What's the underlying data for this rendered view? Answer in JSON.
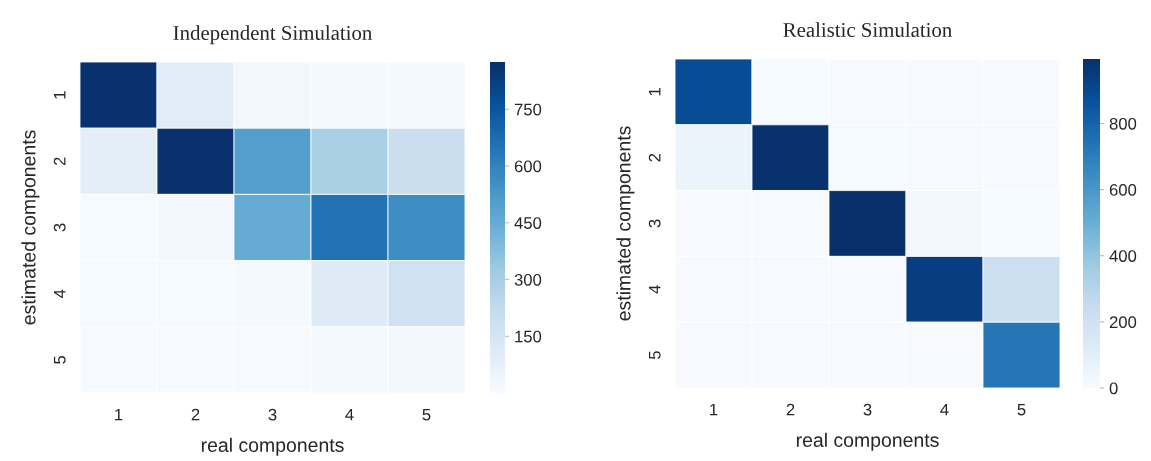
{
  "chart_data": [
    {
      "type": "heatmap",
      "title": "Independent Simulation",
      "xlabel": "real components",
      "ylabel": "estimated components",
      "categories": [
        "1",
        "2",
        "3",
        "4",
        "5"
      ],
      "y_categories": [
        "1",
        "2",
        "3",
        "4",
        "5"
      ],
      "cells": [
        [
          870,
          100,
          30,
          15,
          15
        ],
        [
          90,
          870,
          500,
          300,
          200
        ],
        [
          10,
          20,
          450,
          650,
          560
        ],
        [
          10,
          10,
          15,
          110,
          180
        ],
        [
          5,
          5,
          5,
          15,
          30
        ]
      ],
      "clim": [
        0,
        875
      ],
      "cticks": [
        150,
        300,
        450,
        600,
        750
      ]
    },
    {
      "type": "heatmap",
      "title": "Realistic Simulation",
      "xlabel": "real components",
      "ylabel": "estimated components",
      "categories": [
        "1",
        "2",
        "3",
        "4",
        "5"
      ],
      "y_categories": [
        "1",
        "2",
        "3",
        "4",
        "5"
      ],
      "cells": [
        [
          890,
          10,
          5,
          5,
          5
        ],
        [
          60,
          990,
          10,
          5,
          5
        ],
        [
          5,
          5,
          995,
          30,
          10
        ],
        [
          5,
          5,
          5,
          940,
          220
        ],
        [
          5,
          5,
          5,
          5,
          730
        ]
      ],
      "clim": [
        0,
        995
      ],
      "cticks": [
        0,
        200,
        400,
        600,
        800
      ]
    }
  ]
}
